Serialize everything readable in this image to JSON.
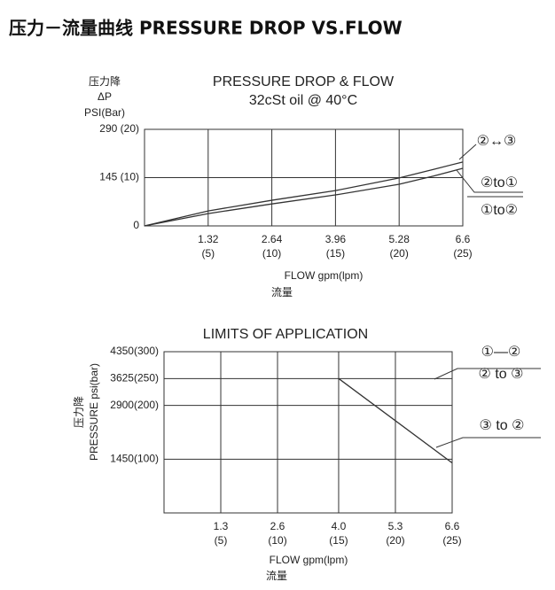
{
  "title": "压力－流量曲线 PRESSURE DROP VS.FLOW",
  "chart_data": [
    {
      "type": "line",
      "title": "PRESSURE DROP & FLOW",
      "subtitle": "32cSt oil @ 40°C",
      "y_label": [
        "压力降",
        "ΔP",
        "PSI(Bar)"
      ],
      "x_label": [
        "FLOW gpm(lpm)",
        "流量"
      ],
      "xlim": [
        0,
        6.6
      ],
      "ylim": [
        0,
        290
      ],
      "xticks": [
        1.32,
        2.64,
        3.96,
        5.28,
        6.6
      ],
      "xticks_secondary": [
        "(5)",
        "(10)",
        "(15)",
        "(20)",
        "(25)"
      ],
      "yticks": [
        {
          "value": 290,
          "label": "290 (20)"
        },
        {
          "value": 145,
          "label": "145 (10)"
        },
        0
      ],
      "grid": true,
      "color": "#333",
      "series": [
        {
          "name": "②↔③",
          "x": [
            0,
            1.32,
            2.64,
            3.96,
            5.28,
            6.0,
            6.6
          ],
          "values": [
            0,
            45,
            77,
            106,
            144,
            170,
            192
          ]
        },
        {
          "name": "②to①",
          "x": [
            0,
            1.32,
            2.64,
            3.96,
            5.28,
            6.0,
            6.6
          ],
          "values": [
            0,
            37,
            66,
            93,
            125,
            150,
            173
          ]
        }
      ],
      "annotations": [
        "①to②"
      ]
    },
    {
      "type": "line",
      "title": "LIMITS  OF APPLICATION",
      "y_label": [
        "PRESSURE  psi(bar)",
        "压力降"
      ],
      "x_label": [
        "FLOW gpm(lpm)",
        "流量"
      ],
      "xlim": [
        0,
        6.6
      ],
      "ylim": [
        0,
        4350
      ],
      "xticks": [
        {
          "value": 1.3,
          "label": "1.3"
        },
        {
          "value": 2.6,
          "label": "2.6"
        },
        {
          "value": 4.0,
          "label": "4.0"
        },
        {
          "value": 5.3,
          "label": "5.3"
        },
        6.6
      ],
      "xticks_secondary": [
        "(5)",
        "(10)",
        "(15)",
        "(20)",
        "(25)"
      ],
      "yticks": [
        {
          "value": 4350,
          "label": "4350(300)"
        },
        {
          "value": 3625,
          "label": "3625(250)"
        },
        {
          "value": 2900,
          "label": "2900(200)"
        },
        {
          "value": 1450,
          "label": "1450(100)"
        }
      ],
      "grid": true,
      "color": "#333",
      "series": [
        {
          "name": "③ to ②",
          "x": [
            4.0,
            6.6
          ],
          "values": [
            3625,
            1350
          ]
        }
      ],
      "annotations": [
        "①—②",
        "② to ③"
      ]
    }
  ]
}
